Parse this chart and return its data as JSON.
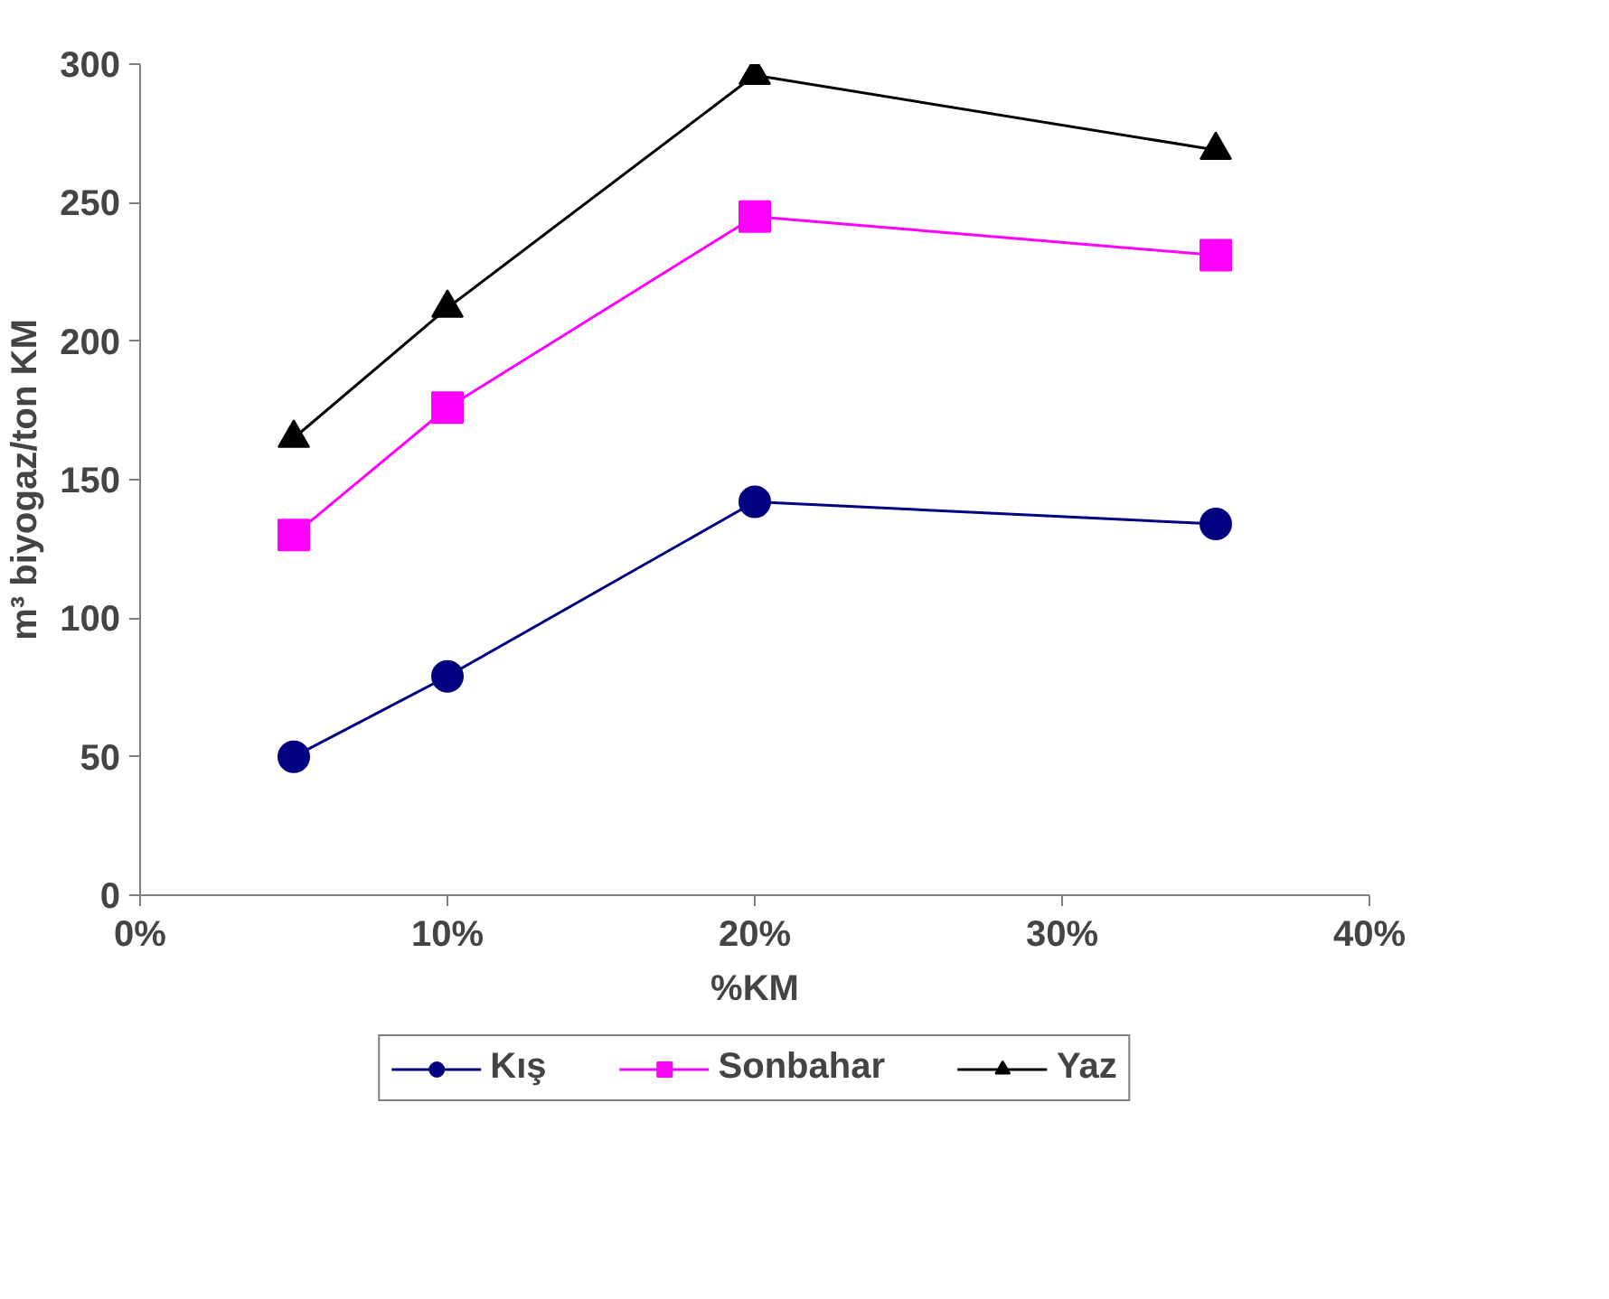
{
  "chart_data": {
    "type": "line",
    "xlabel": "%KM",
    "ylabel": "m³ biyogaz/ton KM",
    "x": [
      5,
      10,
      20,
      35
    ],
    "xlim": [
      0,
      40
    ],
    "xticks": [
      {
        "value": 0,
        "label": "0%"
      },
      {
        "value": 10,
        "label": "10%"
      },
      {
        "value": 20,
        "label": "20%"
      },
      {
        "value": 30,
        "label": "30%"
      },
      {
        "value": 40,
        "label": "40%"
      }
    ],
    "ylim": [
      0,
      300
    ],
    "yticks": [
      0,
      50,
      100,
      150,
      200,
      250,
      300
    ],
    "grid": false,
    "legend": "bottom",
    "line_style": "solid",
    "series": [
      {
        "name": "Kış",
        "color": "#000080",
        "marker": "circle",
        "values": [
          50,
          79,
          142,
          134
        ]
      },
      {
        "name": "Sonbahar",
        "color": "#ff00ff",
        "marker": "square",
        "values": [
          130,
          176,
          245,
          231
        ]
      },
      {
        "name": "Yaz",
        "color": "#000000",
        "marker": "triangle",
        "values": [
          165,
          212,
          296,
          269
        ]
      }
    ]
  }
}
